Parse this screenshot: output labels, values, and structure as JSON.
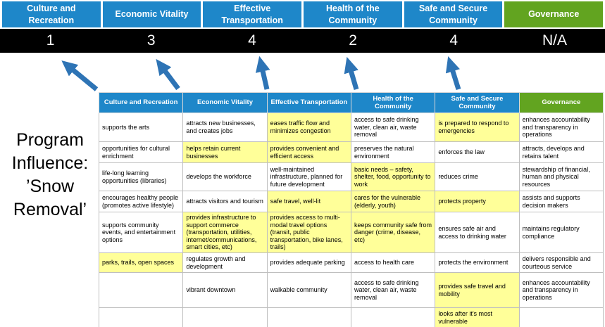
{
  "title": "Program Influence: ’Snow Removal’",
  "colors": {
    "blue": "#1e87c9",
    "green": "#62a420",
    "yellow": "#ffff99",
    "arrow": "#2e74b5",
    "score_bg": "#000000",
    "border": "#bfbfbf"
  },
  "pillars": [
    {
      "name": "Culture and Recreation",
      "score": "1",
      "color": "blue"
    },
    {
      "name": "Economic Vitality",
      "score": "3",
      "color": "blue"
    },
    {
      "name": "Effective Transportation",
      "score": "4",
      "color": "blue"
    },
    {
      "name": "Health of the Community",
      "score": "2",
      "color": "blue"
    },
    {
      "name": "Safe and Secure Community",
      "score": "4",
      "color": "blue"
    },
    {
      "name": "Governance",
      "score": "N/A",
      "color": "green"
    }
  ],
  "table": {
    "headers": [
      {
        "label": "Culture and Recreation",
        "color": "blue"
      },
      {
        "label": "Economic Vitality",
        "color": "blue"
      },
      {
        "label": "Effective Transportation",
        "color": "blue"
      },
      {
        "label": "Health of the Community",
        "color": "blue"
      },
      {
        "label": "Safe and Secure Community",
        "color": "blue"
      },
      {
        "label": "Governance",
        "color": "green"
      }
    ],
    "rows": [
      [
        {
          "text": "supports the arts",
          "highlight": false
        },
        {
          "text": "attracts new businesses, and creates jobs",
          "highlight": false
        },
        {
          "text": "eases traffic flow and minimizes congestion",
          "highlight": true
        },
        {
          "text": "access to safe drinking water, clean air, waste removal",
          "highlight": false
        },
        {
          "text": "is prepared to respond to emergencies",
          "highlight": true
        },
        {
          "text": "enhances accountability and transparency in operations",
          "highlight": false
        }
      ],
      [
        {
          "text": "opportunities for cultural enrichment",
          "highlight": false
        },
        {
          "text": "helps retain current businesses",
          "highlight": true
        },
        {
          "text": "provides convenient and efficient access",
          "highlight": true
        },
        {
          "text": "preserves the natural environment",
          "highlight": false
        },
        {
          "text": "enforces the law",
          "highlight": false
        },
        {
          "text": "attracts, develops and retains talent",
          "highlight": false
        }
      ],
      [
        {
          "text": "life-long learning opportunities (libraries)",
          "highlight": false
        },
        {
          "text": "develops the workforce",
          "highlight": false
        },
        {
          "text": "well-maintained infrastructure, planned for future development",
          "highlight": false
        },
        {
          "text": "basic needs – safety, shelter, food, opportunity to work",
          "highlight": true
        },
        {
          "text": "reduces crime",
          "highlight": false
        },
        {
          "text": "stewardship of financial, human and physical resources",
          "highlight": false
        }
      ],
      [
        {
          "text": "encourages healthy people (promotes active lifestyle)",
          "highlight": false
        },
        {
          "text": "attracts visitors and tourism",
          "highlight": false
        },
        {
          "text": "safe travel, well-lit",
          "highlight": true
        },
        {
          "text": "cares for the vulnerable (elderly, youth)",
          "highlight": true
        },
        {
          "text": "protects property",
          "highlight": true
        },
        {
          "text": "assists and supports decision makers",
          "highlight": false
        }
      ],
      [
        {
          "text": "supports community events, and entertainment options",
          "highlight": false
        },
        {
          "text": "provides infrastructure to support commerce (transportation, utilities, internet/communications, smart cities, etc)",
          "highlight": true
        },
        {
          "text": "provides access to multi-modal travel options (transit, public transportation, bike lanes, trails)",
          "highlight": true
        },
        {
          "text": "keeps community safe from danger (crime, disease, etc)",
          "highlight": true
        },
        {
          "text": "ensures safe air and access to drinking water",
          "highlight": false
        },
        {
          "text": "maintains regulatory compliance",
          "highlight": false
        }
      ],
      [
        {
          "text": "parks, trails, open spaces",
          "highlight": true
        },
        {
          "text": "regulates growth and development",
          "highlight": false
        },
        {
          "text": "provides adequate parking",
          "highlight": false
        },
        {
          "text": "access to health care",
          "highlight": false
        },
        {
          "text": "protects the environment",
          "highlight": false
        },
        {
          "text": "delivers responsible and courteous service",
          "highlight": false
        }
      ],
      [
        {
          "text": "",
          "highlight": false
        },
        {
          "text": "vibrant downtown",
          "highlight": false
        },
        {
          "text": "walkable community",
          "highlight": false
        },
        {
          "text": "access to safe drinking water, clean air, waste removal",
          "highlight": false
        },
        {
          "text": "provides safe travel and mobility",
          "highlight": true
        },
        {
          "text": "enhances accountability and transparency in operations",
          "highlight": false
        }
      ],
      [
        {
          "text": "",
          "highlight": false
        },
        {
          "text": "",
          "highlight": false
        },
        {
          "text": "",
          "highlight": false
        },
        {
          "text": "",
          "highlight": false
        },
        {
          "text": "looks after it's most vulnerable",
          "highlight": true
        },
        {
          "text": "",
          "highlight": false
        }
      ]
    ]
  }
}
